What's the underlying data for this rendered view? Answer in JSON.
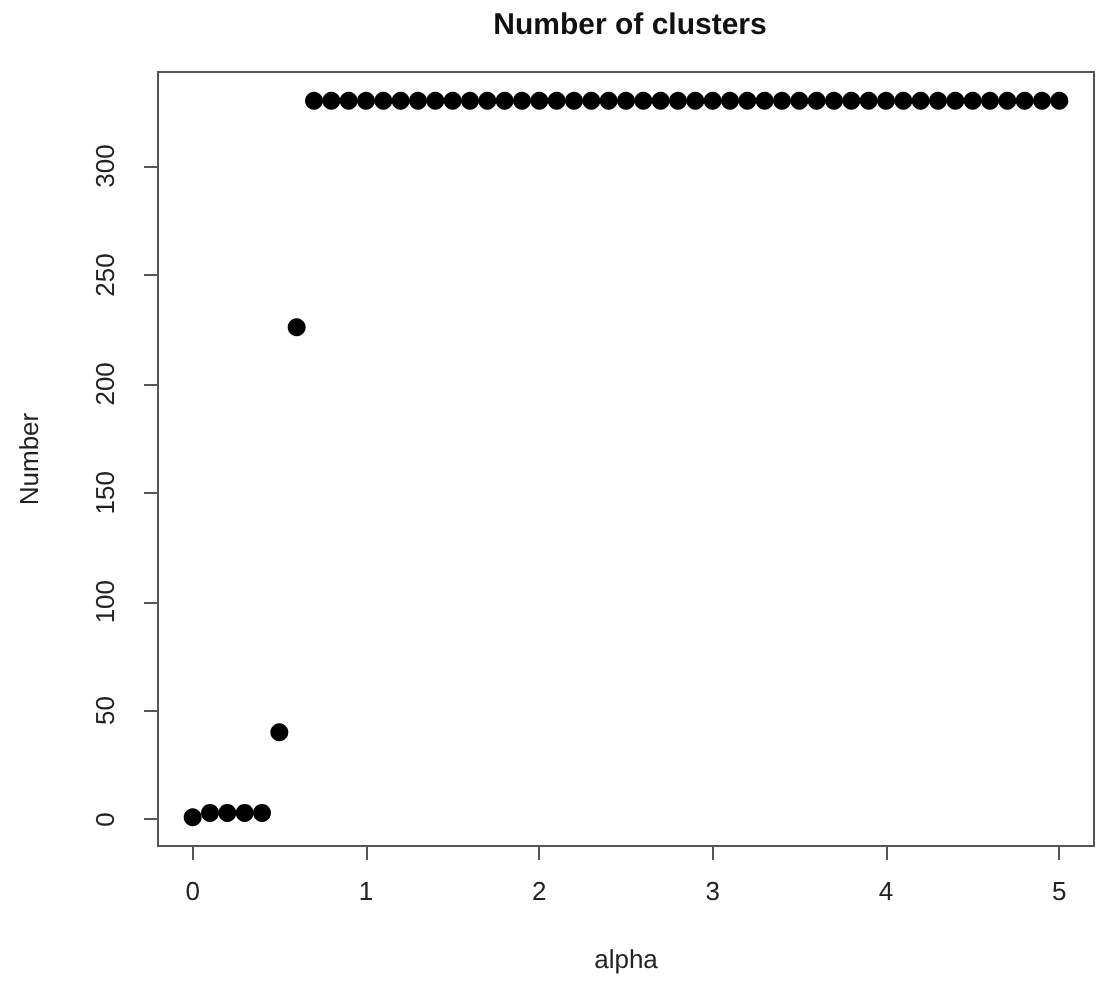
{
  "chart_data": {
    "type": "scatter",
    "title": "Number of clusters",
    "xlabel": "alpha",
    "ylabel": "Number",
    "x": [
      0,
      0.1,
      0.2,
      0.3,
      0.4,
      0.5,
      0.6,
      0.7,
      0.8,
      0.9,
      1,
      1.1,
      1.2,
      1.3,
      1.4,
      1.5,
      1.6,
      1.7,
      1.8,
      1.9,
      2,
      2.1,
      2.2,
      2.3,
      2.4,
      2.5,
      2.6,
      2.7,
      2.8,
      2.9,
      3,
      3.1,
      3.2,
      3.3,
      3.4,
      3.5,
      3.6,
      3.7,
      3.8,
      3.9,
      4,
      4.1,
      4.2,
      4.3,
      4.4,
      4.5,
      4.6,
      4.7,
      4.8,
      4.9,
      5
    ],
    "values": [
      1,
      3,
      3,
      3,
      3,
      40,
      226,
      330,
      330,
      330,
      330,
      330,
      330,
      330,
      330,
      330,
      330,
      330,
      330,
      330,
      330,
      330,
      330,
      330,
      330,
      330,
      330,
      330,
      330,
      330,
      330,
      330,
      330,
      330,
      330,
      330,
      330,
      330,
      330,
      330,
      330,
      330,
      330,
      330,
      330,
      330,
      330,
      330,
      330,
      330,
      330
    ],
    "color": "#000000",
    "marker": "circle",
    "xlim": [
      -0.2,
      5.2
    ],
    "ylim": [
      -12.2,
      343.2
    ],
    "xticks": [
      0,
      1,
      2,
      3,
      4,
      5
    ],
    "yticks": [
      0,
      50,
      100,
      150,
      200,
      250,
      300
    ]
  }
}
